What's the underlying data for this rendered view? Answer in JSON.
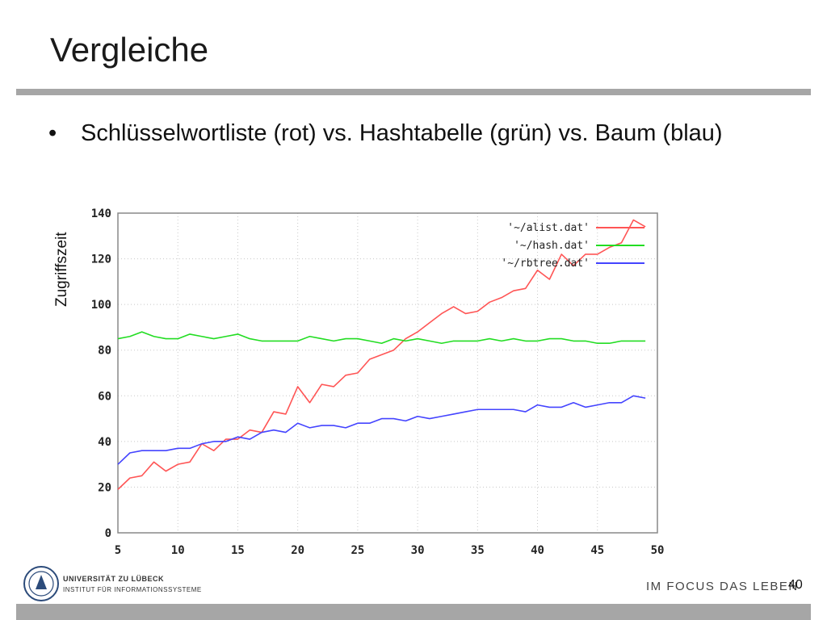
{
  "slide": {
    "title": "Vergleiche",
    "bullet_symbol": "•",
    "bullet_text": "Schlüsselwortliste (rot) vs. Hashtabelle  (grün) vs. Baum (blau)",
    "ylabel": "Zugriffszeit",
    "page_number": "40"
  },
  "footer": {
    "university": "UNIVERSITÄT ZU LÜBECK",
    "institute": "INSTITUT FÜR INFORMATIONSSYSTEME",
    "slogan": "IM FOCUS DAS LEBEN",
    "logo_icon": "university-seal-icon"
  },
  "chart_data": {
    "type": "line",
    "title": "",
    "xlabel": "",
    "ylabel": "Zugriffszeit",
    "xlim": [
      5,
      50
    ],
    "ylim": [
      0,
      140
    ],
    "xticks": [
      5,
      10,
      15,
      20,
      25,
      30,
      35,
      40,
      45,
      50
    ],
    "yticks": [
      0,
      20,
      40,
      60,
      80,
      100,
      120,
      140
    ],
    "grid": true,
    "legend_position": "top-right",
    "x": [
      5,
      6,
      7,
      8,
      9,
      10,
      11,
      12,
      13,
      14,
      15,
      16,
      17,
      18,
      19,
      20,
      21,
      22,
      23,
      24,
      25,
      26,
      27,
      28,
      29,
      30,
      31,
      32,
      33,
      34,
      35,
      36,
      37,
      38,
      39,
      40,
      41,
      42,
      43,
      44,
      45,
      46,
      47,
      48,
      49
    ],
    "series": [
      {
        "name": "'~/alist.dat'",
        "color": "#ff5555",
        "values": [
          19,
          24,
          25,
          31,
          27,
          30,
          31,
          39,
          36,
          41,
          41,
          45,
          44,
          53,
          52,
          64,
          57,
          65,
          64,
          69,
          70,
          76,
          78,
          80,
          85,
          88,
          92,
          96,
          99,
          96,
          97,
          101,
          103,
          106,
          107,
          115,
          111,
          122,
          117,
          122,
          122,
          125,
          127,
          137,
          134
        ]
      },
      {
        "name": "'~/hash.dat'",
        "color": "#22dd22",
        "values": [
          85,
          86,
          88,
          86,
          85,
          85,
          87,
          86,
          85,
          86,
          87,
          85,
          84,
          84,
          84,
          84,
          86,
          85,
          84,
          85,
          85,
          84,
          83,
          85,
          84,
          85,
          84,
          83,
          84,
          84,
          84,
          85,
          84,
          85,
          84,
          84,
          85,
          85,
          84,
          84,
          83,
          83,
          84,
          84,
          84
        ]
      },
      {
        "name": "'~/rbtree.dat'",
        "color": "#4444ff",
        "values": [
          30,
          35,
          36,
          36,
          36,
          37,
          37,
          39,
          40,
          40,
          42,
          41,
          44,
          45,
          44,
          48,
          46,
          47,
          47,
          46,
          48,
          48,
          50,
          50,
          49,
          51,
          50,
          51,
          52,
          53,
          54,
          54,
          54,
          54,
          53,
          56,
          55,
          55,
          57,
          55,
          56,
          57,
          57,
          60,
          59
        ]
      }
    ]
  }
}
